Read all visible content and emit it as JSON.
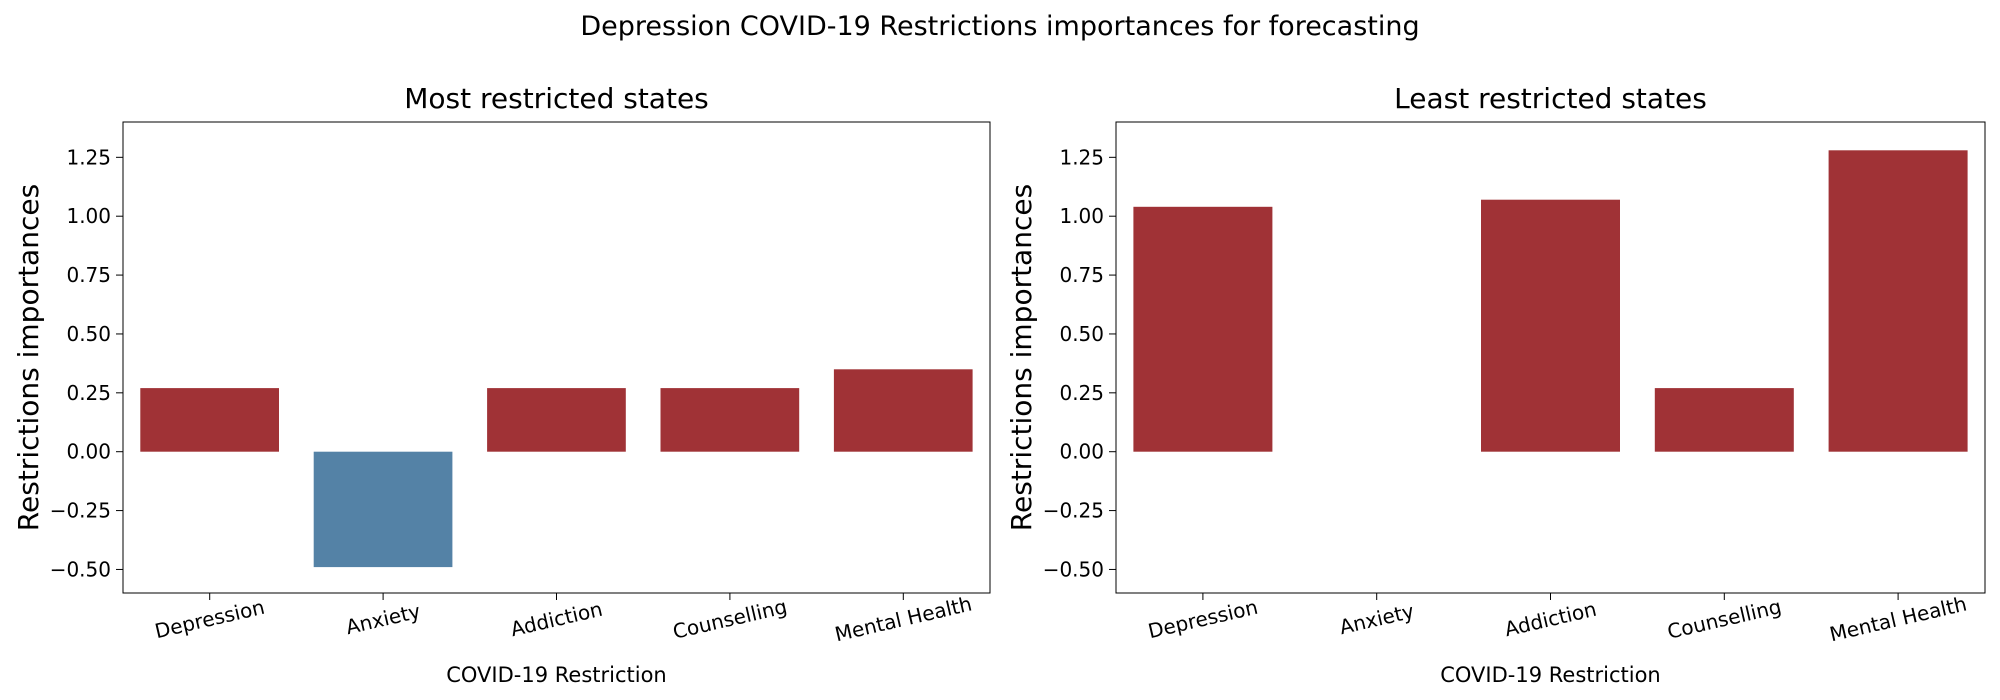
{
  "figure": {
    "title": "Depression COVID-19 Restrictions importances for forecasting"
  },
  "colors": {
    "positive": "#a03236",
    "negative": "#5482a6"
  },
  "chart_data": [
    {
      "type": "bar",
      "title": "Most restricted states",
      "xlabel": "COVID-19 Restriction",
      "ylabel": "Restrictions importances",
      "categories": [
        "Depression",
        "Anxiety",
        "Addiction",
        "Counselling",
        "Mental Health"
      ],
      "values": [
        0.27,
        -0.49,
        0.27,
        0.27,
        0.35
      ],
      "ylim": [
        -0.6,
        1.4
      ],
      "yticks": [
        -0.5,
        -0.25,
        0.0,
        0.25,
        0.5,
        0.75,
        1.0,
        1.25
      ],
      "ytick_labels": [
        "−0.50",
        "−0.25",
        "0.00",
        "0.25",
        "0.50",
        "0.75",
        "1.00",
        "1.25"
      ],
      "grid": false
    },
    {
      "type": "bar",
      "title": "Least restricted states",
      "xlabel": "COVID-19 Restriction",
      "ylabel": "Restrictions importances",
      "categories": [
        "Depression",
        "Anxiety",
        "Addiction",
        "Counselling",
        "Mental Health"
      ],
      "values": [
        1.04,
        0.0,
        1.07,
        0.27,
        1.28
      ],
      "ylim": [
        -0.6,
        1.4
      ],
      "yticks": [
        -0.5,
        -0.25,
        0.0,
        0.25,
        0.5,
        0.75,
        1.0,
        1.25
      ],
      "ytick_labels": [
        "−0.50",
        "−0.25",
        "0.00",
        "0.25",
        "0.50",
        "0.75",
        "1.00",
        "1.25"
      ],
      "grid": false
    }
  ]
}
